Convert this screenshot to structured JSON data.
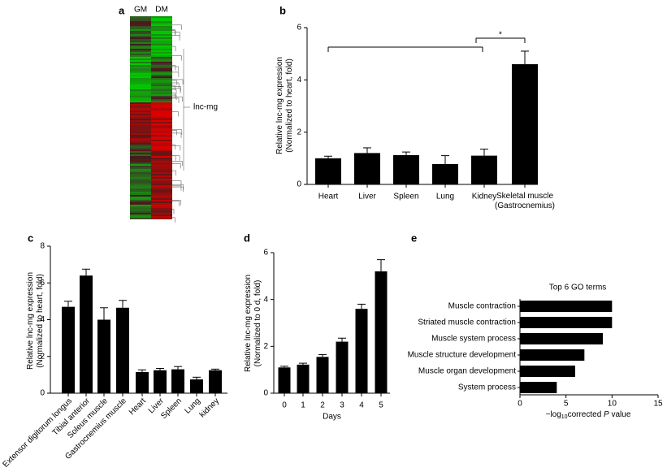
{
  "chart_data": [
    {
      "type": "heatmap",
      "panel": "a",
      "columns": [
        "GM",
        "DM"
      ],
      "annotation": "lnc-mg"
    },
    {
      "type": "bar",
      "panel": "b",
      "ylabel": [
        "Relative lnc-mg expression",
        "(Normalized to heart, fold)"
      ],
      "categories": [
        "Heart",
        "Liver",
        "Spleen",
        "Lung",
        "Kidney",
        "Skeletal muscle (Gastrocnemius)"
      ],
      "values": [
        1.0,
        1.2,
        1.12,
        0.78,
        1.1,
        4.6
      ],
      "errors": [
        0.08,
        0.2,
        0.12,
        0.32,
        0.25,
        0.5
      ],
      "color": "#000000",
      "ylim": [
        0,
        6
      ],
      "yticks": [
        0,
        2,
        4,
        6
      ],
      "annotation": "*"
    },
    {
      "type": "bar",
      "panel": "c",
      "ylabel": [
        "Relative lnc-mg expression",
        "(Normalized to heart, fold)"
      ],
      "categories": [
        "Extensor digitorum longus",
        "Tibial anterior",
        "Soleus muscle",
        "Gastrocnemius muscle",
        "Heart",
        "Liver",
        "Spleen",
        "Lung",
        "kidney"
      ],
      "values": [
        4.7,
        6.4,
        4.0,
        4.65,
        1.15,
        1.25,
        1.3,
        0.75,
        1.25
      ],
      "errors": [
        0.3,
        0.35,
        0.65,
        0.4,
        0.12,
        0.1,
        0.15,
        0.12,
        0.06
      ],
      "color": "#000000",
      "ylim": [
        0,
        8
      ],
      "yticks": [
        0,
        2,
        4,
        6,
        8
      ]
    },
    {
      "type": "bar",
      "panel": "d",
      "ylabel": [
        "Relative lnc-mg expression",
        "(Normalized to 0 d, fold)"
      ],
      "xlabel": "Days",
      "categories": [
        0,
        1,
        2,
        3,
        4,
        5
      ],
      "values": [
        1.1,
        1.22,
        1.55,
        2.2,
        3.6,
        5.2
      ],
      "errors": [
        0.05,
        0.06,
        0.1,
        0.15,
        0.2,
        0.5
      ],
      "color": "#000000",
      "ylim": [
        0,
        6
      ],
      "yticks": [
        0,
        2,
        4,
        6
      ]
    },
    {
      "type": "hbar",
      "panel": "e",
      "title": "Top 6 GO terms",
      "xlabel": [
        "−log",
        "10",
        "corrected ",
        "P",
        " value"
      ],
      "categories": [
        "Muscle contraction",
        "Striated muscle contraction",
        "Muscle system process",
        "Muscle structure development",
        "Muscle organ development",
        "System process"
      ],
      "values": [
        10,
        10,
        9,
        7,
        6,
        4
      ],
      "color": "#000000",
      "xlim": [
        0,
        15
      ],
      "xticks": [
        0,
        5,
        10,
        15
      ]
    }
  ]
}
